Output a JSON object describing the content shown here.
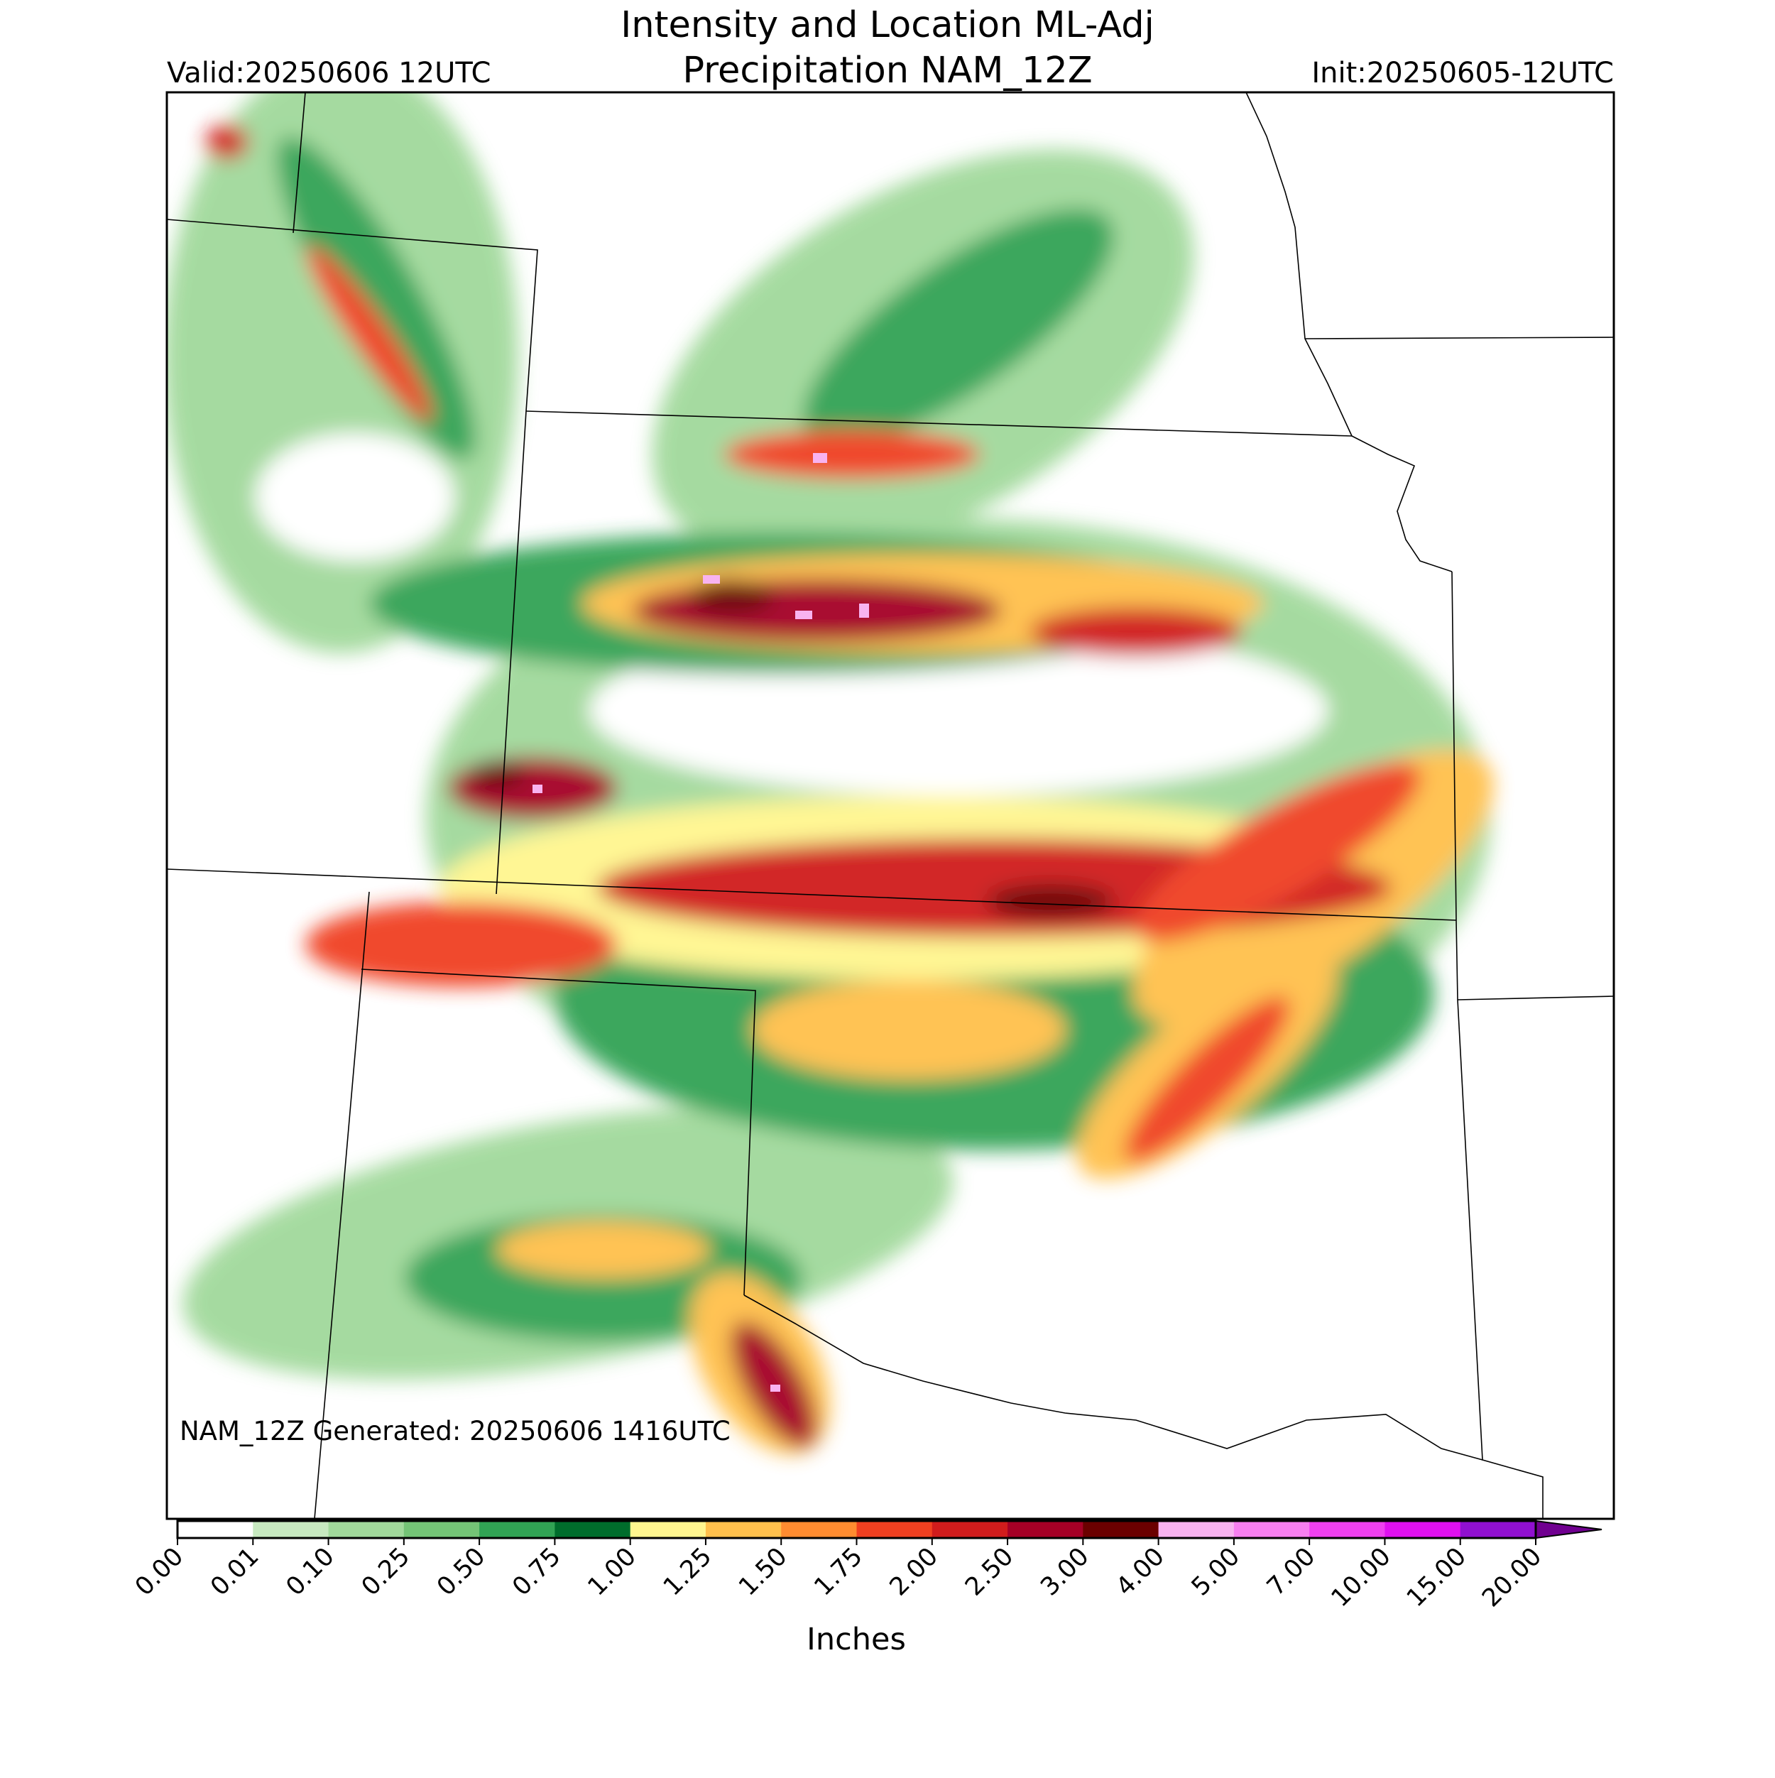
{
  "header": {
    "title_lines": [
      "Intensity and Location ML-Adj",
      "Precipitation NAM_12Z"
    ],
    "valid": "Valid:20250606 12UTC",
    "init": "Init:20250605-12UTC"
  },
  "map": {
    "footnote": "NAM_12Z Generated: 20250606 1416UTC"
  },
  "colorbar": {
    "label": "Inches",
    "ticks": [
      {
        "value": 0,
        "label": "0.00"
      },
      {
        "value": 0.01,
        "label": "0.01"
      },
      {
        "value": 0.1,
        "label": "0.10"
      },
      {
        "value": 0.25,
        "label": "0.25"
      },
      {
        "value": 0.5,
        "label": "0.50"
      },
      {
        "value": 0.75,
        "label": "0.75"
      },
      {
        "value": 1,
        "label": "1.00"
      },
      {
        "value": 1.25,
        "label": "1.25"
      },
      {
        "value": 1.5,
        "label": "1.50"
      },
      {
        "value": 1.75,
        "label": "1.75"
      },
      {
        "value": 2,
        "label": "2.00"
      },
      {
        "value": 2.5,
        "label": "2.50"
      },
      {
        "value": 3,
        "label": "3.00"
      },
      {
        "value": 4,
        "label": "4.00"
      },
      {
        "value": 5,
        "label": "5.00"
      },
      {
        "value": 7,
        "label": "7.00"
      },
      {
        "value": 10,
        "label": "10.00"
      },
      {
        "value": 15,
        "label": "15.00"
      },
      {
        "value": 20,
        "label": "20.00"
      }
    ],
    "colors": [
      "#ffffff",
      "#c7e9c0",
      "#a1d99b",
      "#74c476",
      "#31a354",
      "#006d2c",
      "#fff68f",
      "#ffc04c",
      "#ff8c30",
      "#f04020",
      "#d01c1c",
      "#a50026",
      "#6b0000",
      "#f8b3f0",
      "#f77ff0",
      "#f040f0",
      "#e010f0",
      "#9010d0"
    ],
    "extend_color": "#700090"
  }
}
